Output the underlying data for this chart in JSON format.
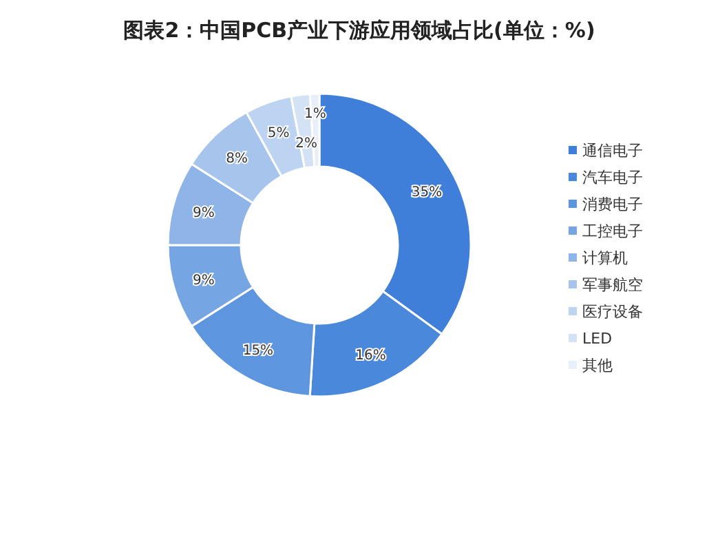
{
  "chart_data": {
    "type": "donut",
    "title": "图表2：中国PCB产业下游应用领域占比(单位：%)",
    "categories": [
      "通信电子",
      "汽车电子",
      "消费电子",
      "工控电子",
      "计算机",
      "军事航空",
      "医疗设备",
      "LED",
      "其他"
    ],
    "values": [
      35,
      16,
      15,
      9,
      9,
      8,
      5,
      2,
      1
    ],
    "value_labels": [
      "35%",
      "16%",
      "15%",
      "9%",
      "9%",
      "8%",
      "5%",
      "2%",
      "1%"
    ],
    "colors": [
      "#3f7fd9",
      "#4a88dc",
      "#5e95df",
      "#76a5e4",
      "#8fb5e8",
      "#a6c4ec",
      "#bcd3f1",
      "#d3e2f5",
      "#e8eff9"
    ],
    "legend": "right"
  }
}
